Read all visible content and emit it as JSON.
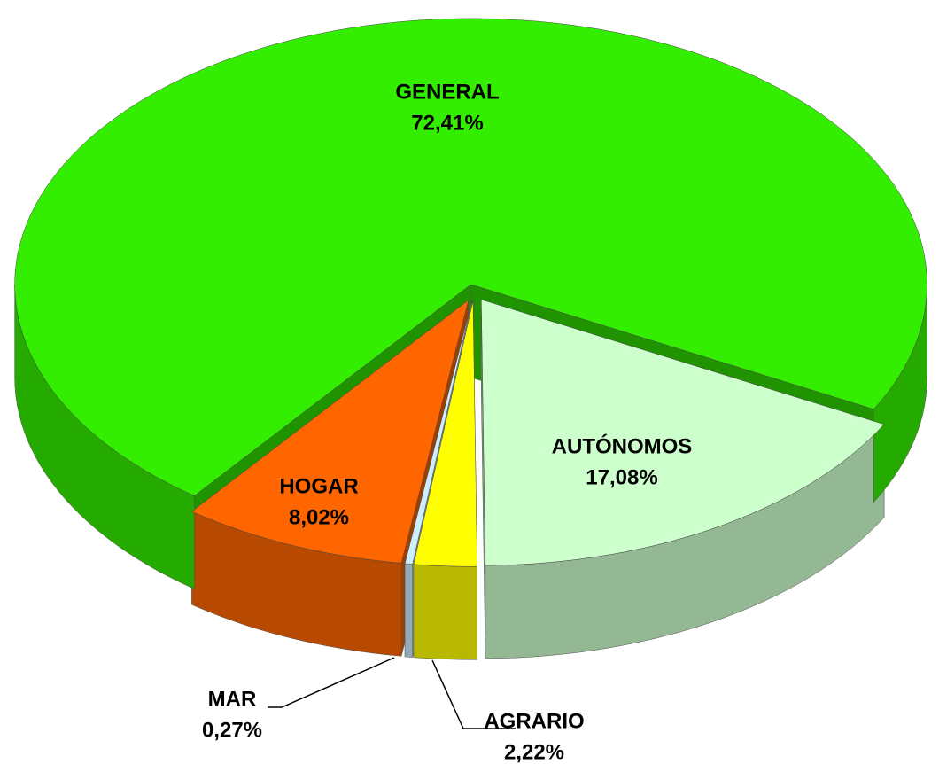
{
  "chart_data": {
    "type": "pie3d",
    "categories": [
      "AUTÓNOMOS",
      "AGRARIO",
      "MAR",
      "HOGAR",
      "GENERAL"
    ],
    "values": [
      17.08,
      2.22,
      0.27,
      8.02,
      72.41
    ],
    "value_labels": [
      "17,08%",
      "2,22%",
      "0,27%",
      "8,02%",
      "72,41%"
    ],
    "colors": [
      "#ccffcc",
      "#ffff00",
      "#cceeff",
      "#ff6600",
      "#33ee00"
    ]
  }
}
